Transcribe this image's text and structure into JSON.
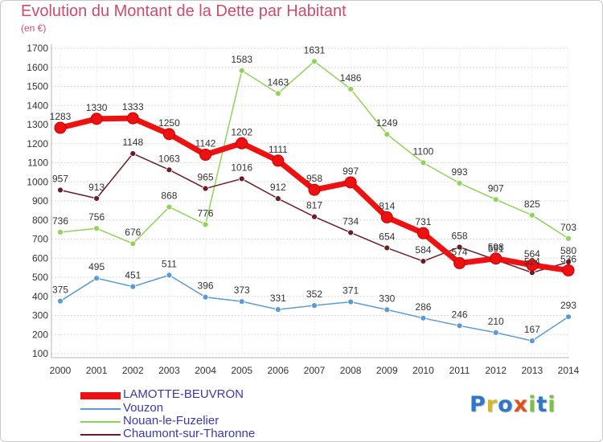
{
  "header": {
    "title": "Evolution du Montant de la Dette par Habitant",
    "subtitle": "(en €)"
  },
  "chart_data": {
    "type": "line",
    "title": "Evolution du Montant de la Dette par Habitant",
    "subtitle": "(en €)",
    "xlabel": "",
    "ylabel": "",
    "ylim": [
      100,
      1700
    ],
    "yticks": [
      100,
      200,
      300,
      400,
      500,
      600,
      700,
      800,
      900,
      1000,
      1100,
      1200,
      1300,
      1400,
      1500,
      1600,
      1700
    ],
    "x": [
      "2000",
      "2001",
      "2002",
      "2003",
      "2004",
      "2005",
      "2006",
      "2007",
      "2008",
      "2009",
      "2010",
      "2011",
      "2012",
      "2013",
      "2014"
    ],
    "grid": "horizontal",
    "legend_position": "bottom-left",
    "series": [
      {
        "name": "LAMOTTE-BEUVRON",
        "color": "#ee1111",
        "values": [
          1283,
          1330,
          1333,
          1250,
          1142,
          1202,
          1111,
          958,
          997,
          814,
          731,
          574,
          598,
          564,
          536
        ]
      },
      {
        "name": "Vouzon",
        "color": "#5b9bd5",
        "values": [
          375,
          495,
          451,
          511,
          396,
          373,
          331,
          352,
          371,
          330,
          286,
          246,
          210,
          167,
          293
        ]
      },
      {
        "name": "Nouan-le-Fuzelier",
        "color": "#8fd35a",
        "values": [
          736,
          756,
          676,
          868,
          776,
          1583,
          1463,
          1631,
          1486,
          1249,
          1100,
          993,
          907,
          825,
          703
        ]
      },
      {
        "name": "Chaumont-sur-Tharonne",
        "color": "#6b1c25",
        "values": [
          957,
          913,
          1148,
          1063,
          965,
          1016,
          912,
          817,
          734,
          654,
          584,
          658,
          591,
          524,
          580
        ]
      }
    ]
  },
  "legend": {
    "items": [
      {
        "label": "LAMOTTE-BEUVRON"
      },
      {
        "label": "Vouzon"
      },
      {
        "label": "Nouan-le-Fuzelier"
      },
      {
        "label": "Chaumont-sur-Tharonne"
      }
    ]
  },
  "logo": {
    "letters": [
      "P",
      "r",
      "o",
      "x",
      "i",
      "t",
      "i"
    ],
    "colors": [
      "#2f78c6",
      "#d9b81a",
      "#2f78c6",
      "#e0501c",
      "#7cc143",
      "#2f78c6",
      "#7cc143"
    ]
  }
}
